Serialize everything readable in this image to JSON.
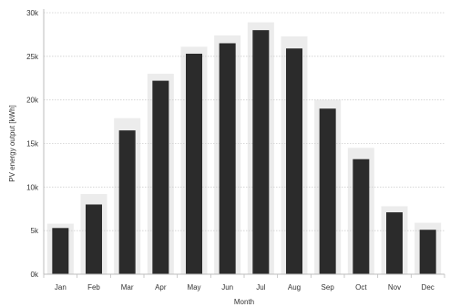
{
  "chart_data": {
    "type": "bar",
    "title": "",
    "xlabel": "Month",
    "ylabel": "PV energy output [kWh]",
    "categories": [
      "Jan",
      "Feb",
      "Mar",
      "Apr",
      "May",
      "Jun",
      "Jul",
      "Aug",
      "Sep",
      "Oct",
      "Nov",
      "Dec"
    ],
    "values": [
      5300,
      8000,
      16500,
      22200,
      25300,
      26500,
      28000,
      25900,
      19000,
      13200,
      7100,
      5100
    ],
    "background_values": [
      5800,
      9200,
      17900,
      23000,
      26100,
      27400,
      28900,
      27300,
      20000,
      14500,
      7800,
      5900
    ],
    "ylim": [
      0,
      30000
    ],
    "yticks": [
      0,
      5000,
      10000,
      15000,
      20000,
      25000,
      30000
    ],
    "ytick_labels": [
      "0k",
      "5k",
      "10k",
      "15k",
      "20k",
      "25k",
      "30k"
    ],
    "grid": true,
    "legend": "none",
    "colors": {
      "bar": "#2b2b2b",
      "background_bar": "#ececec",
      "grid": "#d0d0d0",
      "axis": "#bdbdbd",
      "text": "#333333"
    }
  }
}
